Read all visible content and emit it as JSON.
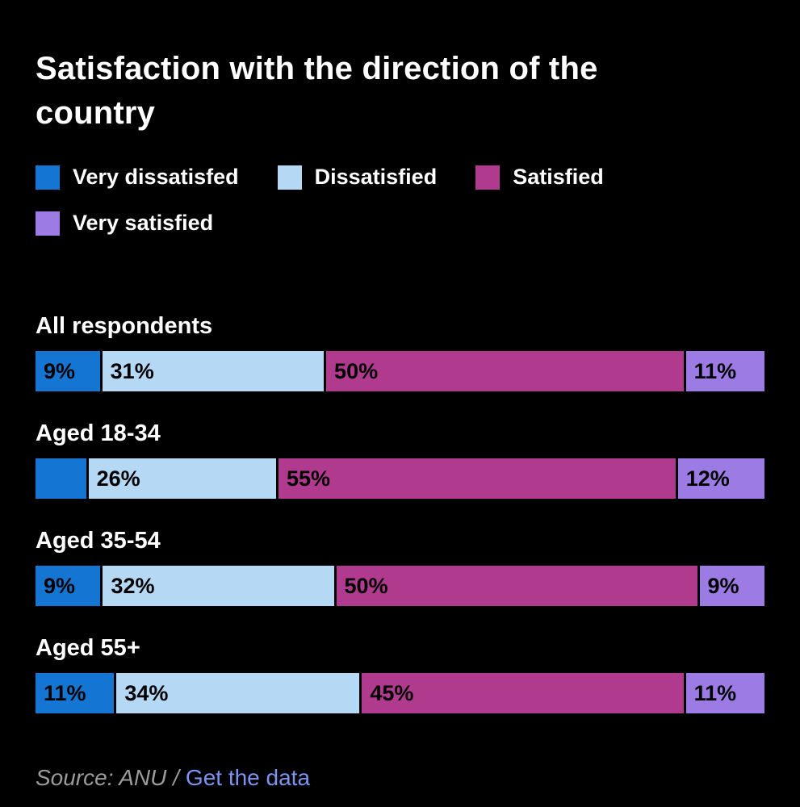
{
  "title": "Satisfaction with the direction of the country",
  "legend": [
    {
      "label": "Very dissatisfed",
      "color": "#1476d2"
    },
    {
      "label": "Dissatisfied",
      "color": "#b5d8f5"
    },
    {
      "label": "Satisfied",
      "color": "#b03a8e"
    },
    {
      "label": "Very satisfied",
      "color": "#9c7ce4"
    }
  ],
  "chart_data": {
    "type": "bar",
    "orientation": "horizontal",
    "stacked": true,
    "unit": "%",
    "title": "Satisfaction with the direction of the country",
    "categories": [
      "All respondents",
      "Aged 18-34",
      "Aged 35-54",
      "Aged 55+"
    ],
    "series": [
      {
        "name": "Very dissatisfed",
        "color": "#1476d2",
        "values": [
          9,
          7,
          9,
          11
        ],
        "labels": [
          "9%",
          "",
          "9%",
          "11%"
        ]
      },
      {
        "name": "Dissatisfied",
        "color": "#b5d8f5",
        "values": [
          31,
          26,
          32,
          34
        ],
        "labels": [
          "31%",
          "26%",
          "32%",
          "34%"
        ]
      },
      {
        "name": "Satisfied",
        "color": "#b03a8e",
        "values": [
          50,
          55,
          50,
          45
        ],
        "labels": [
          "50%",
          "55%",
          "50%",
          "45%"
        ]
      },
      {
        "name": "Very satisfied",
        "color": "#9c7ce4",
        "values": [
          11,
          12,
          9,
          11
        ],
        "labels": [
          "11%",
          "12%",
          "9%",
          "11%"
        ]
      }
    ],
    "legend_position": "top",
    "grid": false,
    "axis_labels_visible": false
  },
  "footer": {
    "source_text": "Source: ANU /",
    "link_text": "Get the data"
  }
}
